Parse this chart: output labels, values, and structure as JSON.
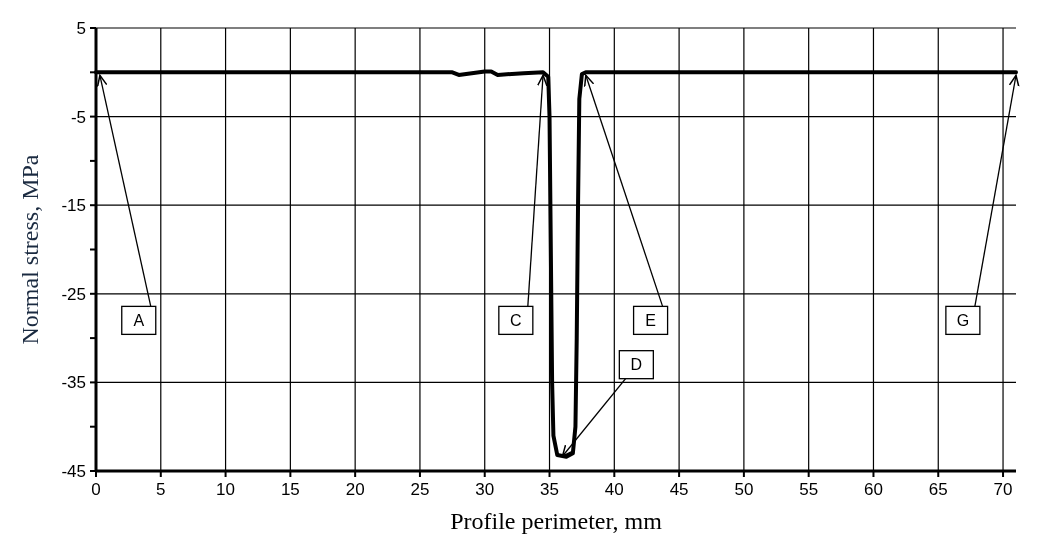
{
  "chart_data": {
    "type": "line",
    "xlabel": "Profile perimeter, mm",
    "ylabel": "Normal stress, MPa",
    "xlim": [
      0,
      71
    ],
    "xticks": [
      0,
      5,
      10,
      15,
      20,
      25,
      30,
      35,
      40,
      45,
      50,
      55,
      60,
      65,
      70
    ],
    "ylim": [
      -45,
      5
    ],
    "yticks": [
      -45,
      {
        "value": -40,
        "label": null
      },
      -35,
      {
        "value": -30,
        "label": null
      },
      -25,
      {
        "value": -20,
        "label": null
      },
      -15,
      {
        "value": -10,
        "label": null
      },
      -5,
      {
        "value": 0,
        "label": null
      },
      5
    ],
    "grid": true,
    "marker": "none",
    "line_style": "solid",
    "series": [
      {
        "color": "#000000",
        "x": [
          0,
          10,
          20,
          27.5,
          28,
          29,
          30,
          30.5,
          31,
          33,
          34.5,
          34.9,
          35.0,
          35.1,
          35.2,
          35.3,
          35.6,
          36.3,
          36.8,
          37.0,
          37.1,
          37.2,
          37.3,
          37.5,
          37.8,
          50,
          71
        ],
        "values": [
          0,
          0,
          0,
          0,
          -0.3,
          -0.1,
          0.1,
          0.1,
          -0.3,
          -0.1,
          0,
          -0.5,
          -5,
          -20,
          -35,
          -41,
          -43.2,
          -43.4,
          -43,
          -40,
          -30,
          -15,
          -3,
          -0.2,
          0,
          0,
          0
        ]
      }
    ],
    "annotations": [
      {
        "text": "A",
        "x": 0.3,
        "y": 0
      },
      {
        "text": "C",
        "x": 34.5,
        "y": 0
      },
      {
        "text": "E",
        "x": 37.8,
        "y": 0
      },
      {
        "text": "D",
        "x": 36,
        "y": -43
      },
      {
        "text": "G",
        "x": 71,
        "y": 0
      }
    ]
  }
}
